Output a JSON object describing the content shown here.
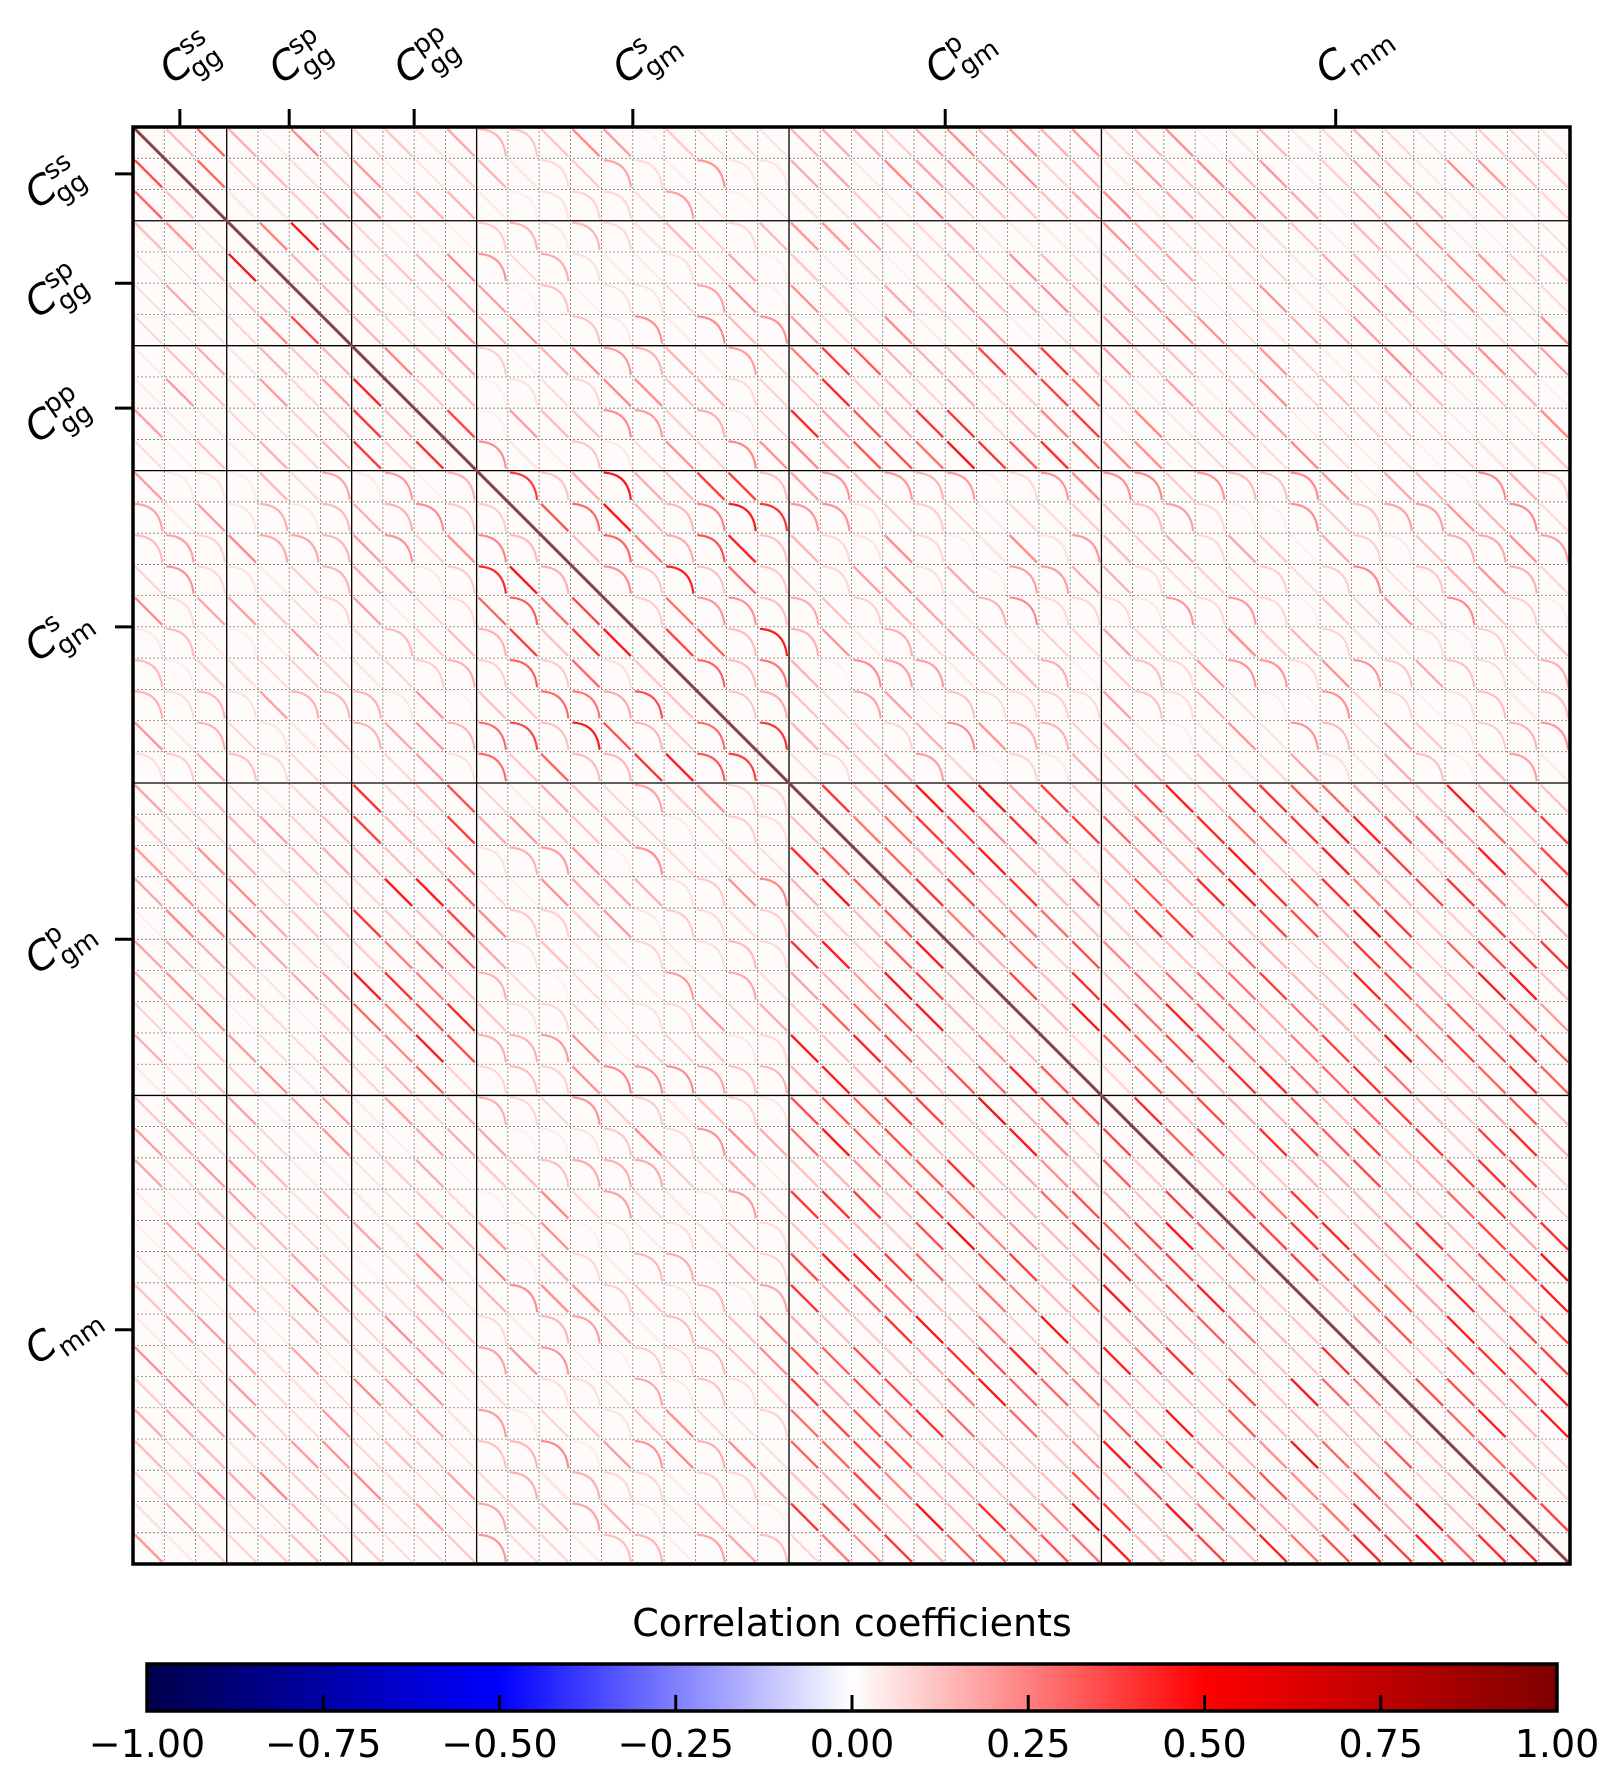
{
  "chart_data": {
    "type": "heatmap",
    "title": "",
    "colorbar": {
      "label": "Correlation coefficients",
      "range": [
        -1.0,
        1.0
      ],
      "colormap": "seismic",
      "colors": [
        "#00004c",
        "#0000ff",
        "#ffffff",
        "#ff0000",
        "#7f0000"
      ],
      "ticks": [
        -1.0,
        -0.75,
        -0.5,
        -0.25,
        0.0,
        0.25,
        0.5,
        0.75,
        1.0
      ],
      "tick_labels": [
        "−1.00",
        "−0.75",
        "−0.50",
        "−0.25",
        "0.00",
        "0.25",
        "0.50",
        "0.75",
        "1.00"
      ],
      "placement": "bottom"
    },
    "blocks": [
      {
        "symbol": "C",
        "sup": "ss",
        "sub": "gg",
        "sub_bins": 3
      },
      {
        "symbol": "C",
        "sup": "sp",
        "sub": "gg",
        "sub_bins": 4
      },
      {
        "symbol": "C",
        "sup": "pp",
        "sub": "gg",
        "sub_bins": 4
      },
      {
        "symbol": "C",
        "sup": "s",
        "sub": "gm",
        "sub_bins": 10
      },
      {
        "symbol": "C",
        "sup": "p",
        "sub": "gm",
        "sub_bins": 10
      },
      {
        "symbol": "C",
        "sup": "",
        "sub": "mm",
        "sub_bins": 15
      }
    ],
    "diagonal_value": 1.0,
    "off_diagonal_range": [
      0.0,
      0.55
    ],
    "grid": true
  }
}
